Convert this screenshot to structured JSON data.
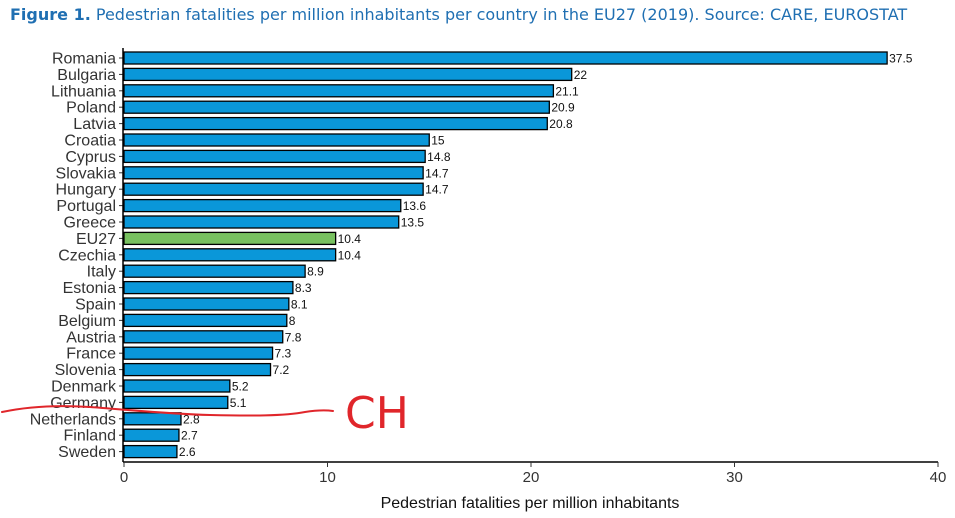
{
  "header": {
    "figure_label": "Figure 1.",
    "title_text": " Pedestrian fatalities per million inhabitants per country in the EU27 (2019). Source: CARE, EUROSTAT"
  },
  "chart_data": {
    "type": "bar",
    "orientation": "horizontal",
    "categories": [
      "Romania",
      "Bulgaria",
      "Lithuania",
      "Poland",
      "Latvia",
      "Croatia",
      "Cyprus",
      "Slovakia",
      "Hungary",
      "Portugal",
      "Greece",
      "EU27",
      "Czechia",
      "Italy",
      "Estonia",
      "Spain",
      "Belgium",
      "Austria",
      "France",
      "Slovenia",
      "Denmark",
      "Germany",
      "Netherlands",
      "Finland",
      "Sweden"
    ],
    "values": [
      37.5,
      22,
      21.1,
      20.9,
      20.8,
      15,
      14.8,
      14.7,
      14.7,
      13.6,
      13.5,
      10.4,
      10.4,
      8.9,
      8.3,
      8.1,
      8,
      7.8,
      7.3,
      7.2,
      5.2,
      5.1,
      2.8,
      2.7,
      2.6
    ],
    "value_labels": [
      "37.5",
      "22",
      "21.1",
      "20.9",
      "20.8",
      "15",
      "14.8",
      "14.7",
      "14.7",
      "13.6",
      "13.5",
      "10.4",
      "10.4",
      "8.9",
      "8.3",
      "8.1",
      "8",
      "7.8",
      "7.3",
      "7.2",
      "5.2",
      "5.1",
      "2.8",
      "2.7",
      "2.6"
    ],
    "highlight_category": "EU27",
    "xlabel": "Pedestrian fatalities per million inhabitants",
    "ylabel": "",
    "xlim": [
      0,
      40
    ],
    "xticks": [
      0,
      10,
      20,
      30,
      40
    ],
    "grid": false,
    "colors": {
      "bar": "#0a97d9",
      "highlight": "#78c160",
      "outline": "#000000",
      "annotation": "#e0262b"
    }
  },
  "annotation": {
    "handwritten_text": "CH",
    "note": "red hand-drawn line between Germany and Netherlands"
  }
}
